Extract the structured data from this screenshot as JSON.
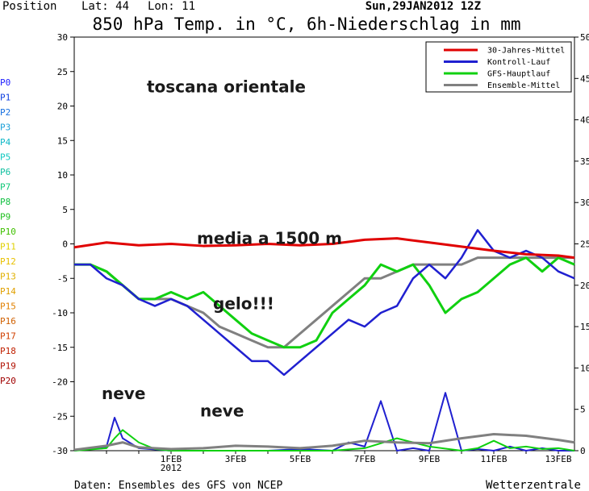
{
  "header": {
    "position_label": "Position",
    "lat_label": "Lat: 44",
    "lon_label": "Lon: 11",
    "run_label": "Sun,29JAN2012 12Z"
  },
  "footer": {
    "source": "Daten: Ensembles des GFS von NCEP",
    "brand": "Wetterzentrale"
  },
  "colors": {
    "clim": "#e00000",
    "control": "#2020d0",
    "gfs": "#10d010",
    "ens_mean": "#808080",
    "annotation": "#1a1a1a"
  },
  "member_labels": [
    {
      "label": "P0",
      "color": "#2020ff"
    },
    {
      "label": "P1",
      "color": "#1040e0"
    },
    {
      "label": "P2",
      "color": "#1870e0"
    },
    {
      "label": "P3",
      "color": "#1aa0d8"
    },
    {
      "label": "P4",
      "color": "#10b8c8"
    },
    {
      "label": "P5",
      "color": "#10c8c0"
    },
    {
      "label": "P6",
      "color": "#10c0a0"
    },
    {
      "label": "P7",
      "color": "#10c878"
    },
    {
      "label": "P8",
      "color": "#10c040"
    },
    {
      "label": "P9",
      "color": "#20c020"
    },
    {
      "label": "P10",
      "color": "#40c000"
    },
    {
      "label": "P11",
      "color": "#e0d000"
    },
    {
      "label": "P12",
      "color": "#e8c000"
    },
    {
      "label": "P13",
      "color": "#e0b000"
    },
    {
      "label": "P14",
      "color": "#e0a000"
    },
    {
      "label": "P15",
      "color": "#e08000"
    },
    {
      "label": "P16",
      "color": "#d06000"
    },
    {
      "label": "P17",
      "color": "#d04000"
    },
    {
      "label": "P18",
      "color": "#c02000"
    },
    {
      "label": "P19",
      "color": "#b01000"
    },
    {
      "label": "P20",
      "color": "#a00000"
    }
  ],
  "chart_data": {
    "type": "line",
    "title": "850 hPa Temp. in °C, 6h-Niederschlag in mm",
    "y_left": {
      "min": -30,
      "max": 30,
      "ticks": [
        30,
        25,
        20,
        15,
        10,
        5,
        0,
        -5,
        -10,
        -15,
        -20,
        -25,
        -30
      ]
    },
    "y_right": {
      "min": 0,
      "max": 50,
      "ticks": [
        50,
        45,
        40,
        35,
        30,
        25,
        20,
        15,
        10,
        5,
        0
      ]
    },
    "x_ticks": [
      {
        "day": 3,
        "label": "1FEB",
        "sub": "2012"
      },
      {
        "day": 5,
        "label": "3FEB",
        "sub": ""
      },
      {
        "day": 7,
        "label": "5FEB",
        "sub": ""
      },
      {
        "day": 9,
        "label": "7FEB",
        "sub": ""
      },
      {
        "day": 11,
        "label": "9FEB",
        "sub": ""
      },
      {
        "day": 13,
        "label": "11FEB",
        "sub": ""
      },
      {
        "day": 15,
        "label": "13FEB",
        "sub": ""
      }
    ],
    "x_range": [
      0,
      15.5
    ],
    "grid": true,
    "legend_position": "top-right",
    "legend": [
      "30-Jahres-Mittel",
      "Kontroll-Lauf",
      "GFS-Hauptlauf",
      "Ensemble-Mittel"
    ],
    "annotations": [
      {
        "text": "toscana orientale",
        "day": 2.25,
        "value": 22
      },
      {
        "text": "media a 1500 m",
        "day": 3.8,
        "value": 0
      },
      {
        "text": "gelo!!!",
        "day": 4.3,
        "value": -9.5
      },
      {
        "text": "neve",
        "day": 0.85,
        "value": -22.5
      },
      {
        "text": "neve",
        "day": 3.9,
        "value": -25
      }
    ],
    "series": [
      {
        "name": "30-Jahres-Mittel",
        "role": "clim",
        "x": [
          0,
          1,
          2,
          3,
          4,
          5,
          6,
          7,
          8,
          9,
          10,
          11,
          12,
          13,
          14,
          15,
          15.5
        ],
        "values": [
          -0.5,
          0.2,
          -0.2,
          0.0,
          -0.3,
          -0.2,
          0.0,
          -0.2,
          0.0,
          0.6,
          0.8,
          0.2,
          -0.4,
          -1.0,
          -1.5,
          -1.7,
          -2.0
        ]
      },
      {
        "name": "Kontroll-Lauf",
        "role": "control",
        "x": [
          0,
          0.5,
          1,
          1.5,
          2,
          2.5,
          3,
          3.5,
          4,
          4.5,
          5,
          5.5,
          6,
          6.5,
          7,
          7.5,
          8,
          8.5,
          9,
          9.5,
          10,
          10.5,
          11,
          11.5,
          12,
          12.5,
          13,
          13.5,
          14,
          14.5,
          15,
          15.5
        ],
        "values": [
          -3,
          -3,
          -5,
          -6,
          -8,
          -9,
          -8,
          -9,
          -11,
          -13,
          -15,
          -17,
          -17,
          -19,
          -17,
          -15,
          -13,
          -11,
          -12,
          -10,
          -9,
          -5,
          -3,
          -5,
          -2,
          2,
          -1,
          -2,
          -1,
          -2,
          -4,
          -5
        ]
      },
      {
        "name": "GFS-Hauptlauf",
        "role": "gfs",
        "x": [
          0,
          0.5,
          1,
          1.5,
          2,
          2.5,
          3,
          3.5,
          4,
          4.5,
          5,
          5.5,
          6,
          6.5,
          7,
          7.5,
          8,
          8.5,
          9,
          9.5,
          10,
          10.5,
          11,
          11.5,
          12,
          12.5,
          13,
          13.5,
          14,
          14.5,
          15,
          15.5
        ],
        "values": [
          -3,
          -3,
          -4,
          -6,
          -8,
          -8,
          -7,
          -8,
          -7,
          -9,
          -11,
          -13,
          -14,
          -15,
          -15,
          -14,
          -10,
          -8,
          -6,
          -3,
          -4,
          -3,
          -6,
          -10,
          -8,
          -7,
          -5,
          -3,
          -2,
          -4,
          -2,
          -3
        ]
      },
      {
        "name": "Ensemble-Mittel",
        "role": "ens_mean",
        "x": [
          0,
          0.5,
          1,
          1.5,
          2,
          2.5,
          3,
          3.5,
          4,
          4.5,
          5,
          5.5,
          6,
          6.5,
          7,
          7.5,
          8,
          8.5,
          9,
          9.5,
          10,
          10.5,
          11,
          11.5,
          12,
          12.5,
          13,
          13.5,
          14,
          14.5,
          15,
          15.5
        ],
        "values": [
          -3,
          -3,
          -4,
          -6,
          -8,
          -8,
          -8,
          -9,
          -10,
          -12,
          -13,
          -14,
          -15,
          -15,
          -13,
          -11,
          -9,
          -7,
          -5,
          -5,
          -4,
          -3,
          -3,
          -3,
          -3,
          -2,
          -2,
          -2,
          -2,
          -2,
          -2,
          -2
        ]
      }
    ],
    "precipitation": [
      {
        "name": "Kontroll-Lauf",
        "role": "control",
        "x": [
          0,
          1,
          1.25,
          1.5,
          2,
          3,
          4,
          5,
          6,
          7,
          8,
          8.5,
          9,
          9.5,
          10,
          10.5,
          11,
          11.5,
          12,
          12.5,
          13,
          13.5,
          14,
          14.5,
          15,
          15.5
        ],
        "values": [
          0,
          0.5,
          4,
          1.5,
          0.3,
          0,
          0,
          0,
          0,
          0.2,
          0,
          1,
          0.5,
          6,
          0,
          0.3,
          0,
          7,
          0,
          0.2,
          0,
          0.5,
          0,
          0.3,
          0,
          0
        ]
      },
      {
        "name": "GFS-Hauptlauf",
        "role": "gfs",
        "x": [
          0,
          1,
          1.25,
          1.5,
          2,
          2.5,
          3,
          4,
          5,
          6,
          7,
          8,
          9,
          10,
          11,
          12,
          12.5,
          13,
          13.5,
          14,
          14.5,
          15,
          15.5
        ],
        "values": [
          0,
          0.3,
          1.5,
          2.5,
          1,
          0.2,
          0,
          0,
          0,
          0,
          0,
          0,
          0.3,
          1.5,
          0.5,
          0,
          0.3,
          1.2,
          0.3,
          0.5,
          0.2,
          0.3,
          0
        ]
      },
      {
        "name": "Ensemble-Mittel",
        "role": "ens_mean",
        "x": [
          0,
          1,
          1.5,
          2,
          3,
          4,
          5,
          6,
          7,
          8,
          9,
          10,
          11,
          12,
          13,
          14,
          15,
          15.5
        ],
        "values": [
          0.1,
          0.6,
          1.0,
          0.4,
          0.2,
          0.3,
          0.6,
          0.5,
          0.3,
          0.6,
          1.2,
          1.0,
          0.9,
          1.5,
          2.0,
          1.8,
          1.3,
          1.0
        ]
      }
    ]
  }
}
